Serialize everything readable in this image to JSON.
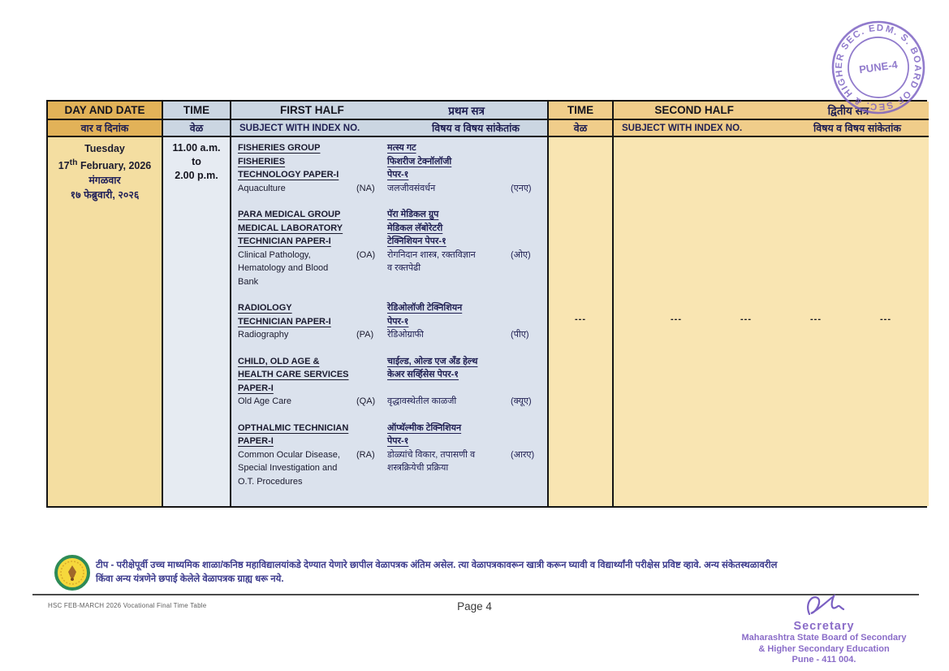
{
  "stamp": {
    "ring_text": "M. S. BOARD OF SEC. & HIGHER SEC. EDN. ✱",
    "center_text": "PUNE-4",
    "color": "#7a5fc2"
  },
  "table": {
    "header": {
      "day_date": {
        "en": "DAY AND DATE",
        "mr": "वार व दिनांक"
      },
      "time1": {
        "en": "TIME",
        "mr": "वेळ"
      },
      "first_half": {
        "en": "FIRST HALF",
        "mr": "प्रथम सत्र"
      },
      "subject1": {
        "en": "SUBJECT WITH INDEX NO.",
        "mr": "विषय व विषय सांकेतांक"
      },
      "time2": {
        "en": "TIME",
        "mr": "वेळ"
      },
      "second_half": {
        "en": "SECOND HALF",
        "mr": "द्वितीय सत्र"
      },
      "subject2": {
        "en": "SUBJECT WITH INDEX NO.",
        "mr": "विषय व विषय सांकेतांक"
      }
    },
    "row": {
      "day": {
        "line1": "Tuesday",
        "line2_num": "17",
        "line2_sup": "th",
        "line2_rest": " February, 2026",
        "line3": "मंगळवार",
        "line4": "१७ फेब्रुवारी, २०२६"
      },
      "time": {
        "line1": "11.00 a.m.",
        "line2": "to",
        "line3": "2.00 p.m."
      },
      "groups": [
        {
          "lines": [
            {
              "h": true,
              "en": "FISHERIES GROUP",
              "cen": "",
              "mr": "मत्स्य गट",
              "cmr": ""
            },
            {
              "h": true,
              "en": "FISHERIES",
              "cen": "",
              "mr": "फिशरीज टेक्नॉलॉजी",
              "cmr": ""
            },
            {
              "h": true,
              "en": "TECHNOLOGY PAPER-I",
              "cen": "",
              "mr": "पेपर-१",
              "cmr": ""
            },
            {
              "h": false,
              "en": "Aquaculture",
              "cen": "(NA)",
              "mr": "जलजीवसंवर्धन",
              "cmr": "(एनए)"
            }
          ]
        },
        {
          "lines": [
            {
              "h": true,
              "en": "PARA MEDICAL GROUP",
              "cen": "",
              "mr": "पॅरा मेडिकल ग्रुप",
              "cmr": ""
            },
            {
              "h": true,
              "en": "MEDICAL LABORATORY",
              "cen": "",
              "mr": "मेडिकल लॅबोरेटरी",
              "cmr": ""
            },
            {
              "h": true,
              "en": "TECHNICIAN PAPER-I",
              "cen": "",
              "mr": "टेक्निशियन पेपर-१",
              "cmr": ""
            },
            {
              "h": false,
              "en": "Clinical Pathology,",
              "cen": "(OA)",
              "mr": "रोगनिदान शास्त्र, रक्तविज्ञान",
              "cmr": "(ओए)"
            },
            {
              "h": false,
              "en": "Hematology and Blood",
              "cen": "",
              "mr": "व रक्तपेढी",
              "cmr": ""
            },
            {
              "h": false,
              "en": "Bank",
              "cen": "",
              "mr": "",
              "cmr": ""
            }
          ]
        },
        {
          "lines": [
            {
              "h": true,
              "en": "RADIOLOGY",
              "cen": "",
              "mr": "रेडिओलॉजी टेक्निशियन",
              "cmr": ""
            },
            {
              "h": true,
              "en": "TECHNICIAN PAPER-I",
              "cen": "",
              "mr": "पेपर-१",
              "cmr": ""
            },
            {
              "h": false,
              "en": "Radiography",
              "cen": "(PA)",
              "mr": "रेडिओग्राफी",
              "cmr": "(पीए)"
            }
          ]
        },
        {
          "lines": [
            {
              "h": true,
              "en": "CHILD, OLD AGE &",
              "cen": "",
              "mr": "चाईल्ड, ओल्ड एज अँड हेल्थ",
              "cmr": ""
            },
            {
              "h": true,
              "en": "HEALTH CARE SERVICES",
              "cen": "",
              "mr": "केअर सर्व्हिसेस पेपर-१",
              "cmr": ""
            },
            {
              "h": true,
              "en": "PAPER-I",
              "cen": "",
              "mr": "",
              "cmr": ""
            },
            {
              "h": false,
              "en": "Old Age Care",
              "cen": "(QA)",
              "mr": "वृद्धावस्थेतील काळजी",
              "cmr": "(क्यूए)"
            }
          ]
        },
        {
          "lines": [
            {
              "h": true,
              "en": "OPTHALMIC TECHNICIAN",
              "cen": "",
              "mr": "ऑप्थॅल्मीक टेक्निशियन",
              "cmr": ""
            },
            {
              "h": true,
              "en": "PAPER-I",
              "cen": "",
              "mr": "पेपर-१",
              "cmr": ""
            },
            {
              "h": false,
              "en": "Common Ocular Disease,",
              "cen": "(RA)",
              "mr": "डोळ्यांचे विकार, तपासणी व",
              "cmr": "(आरए)"
            },
            {
              "h": false,
              "en": "Special Investigation and",
              "cen": "",
              "mr": "शस्त्रक्रियेची प्रक्रिया",
              "cmr": ""
            },
            {
              "h": false,
              "en": "O.T. Procedures",
              "cen": "",
              "mr": "",
              "cmr": ""
            }
          ]
        }
      ],
      "time2_placeholder": "---",
      "second_half_placeholders": [
        "---",
        "---",
        "---",
        "---"
      ]
    }
  },
  "note": {
    "line1": "टीप - परीक्षेपूर्वी उच्च माध्यमिक शाळा/कनिष्ठ महाविद्यालयांकडे देण्यात येणारे छापील वेळापत्रक अंतिम असेल. त्या वेळापत्रकावरून खात्री करून घ्यावी व विद्यार्थ्यांनी परीक्षेस प्रविष्ट व्हावे. अन्य संकेतस्थळावरील",
    "line2": "किंवा अन्य यंत्रणेने छपाई केलेले वेळापत्रक ग्राह्य धरू नये."
  },
  "footer": {
    "left_text": "HSC FEB-MARCH 2026 Vocational Final Time Table",
    "page_number": "Page 4"
  },
  "signature": {
    "title": "Secretary",
    "line1": "Maharashtra State Board of Secondary",
    "line2": "& Higher Secondary Education",
    "line3": "Pune - 411 004."
  }
}
